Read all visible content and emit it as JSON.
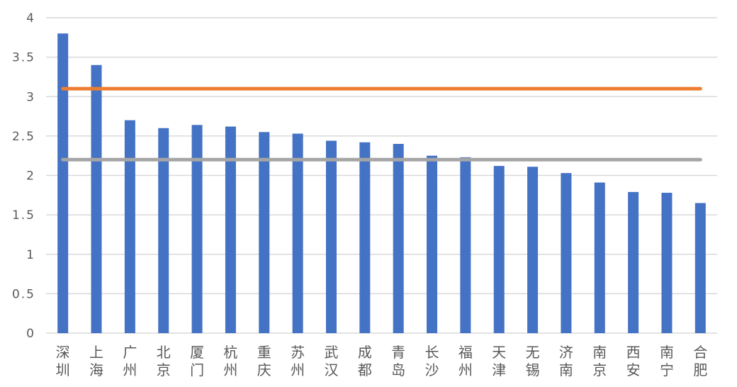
{
  "chart_data": {
    "type": "bar",
    "categories": [
      "深圳",
      "上海",
      "广州",
      "北京",
      "厦门",
      "杭州",
      "重庆",
      "苏州",
      "武汉",
      "成都",
      "青岛",
      "长沙",
      "福州",
      "天津",
      "无锡",
      "济南",
      "南京",
      "西安",
      "南宁",
      "合肥"
    ],
    "values": [
      3.8,
      3.4,
      2.7,
      2.6,
      2.64,
      2.62,
      2.55,
      2.53,
      2.44,
      2.42,
      2.4,
      2.25,
      2.23,
      2.12,
      2.11,
      2.03,
      1.91,
      1.79,
      1.78,
      1.65
    ],
    "reference_lines": [
      {
        "value": 3.1,
        "color": "#ED7D31"
      },
      {
        "value": 2.2,
        "color": "#A5A5A5"
      }
    ],
    "bar_color": "#4472C4",
    "ylim": [
      0,
      4
    ],
    "yticks": [
      "0",
      "0.5",
      "1",
      "1.5",
      "2",
      "2.5",
      "3",
      "3.5",
      "4"
    ],
    "grid": true,
    "title": "",
    "xlabel": "",
    "ylabel": ""
  }
}
